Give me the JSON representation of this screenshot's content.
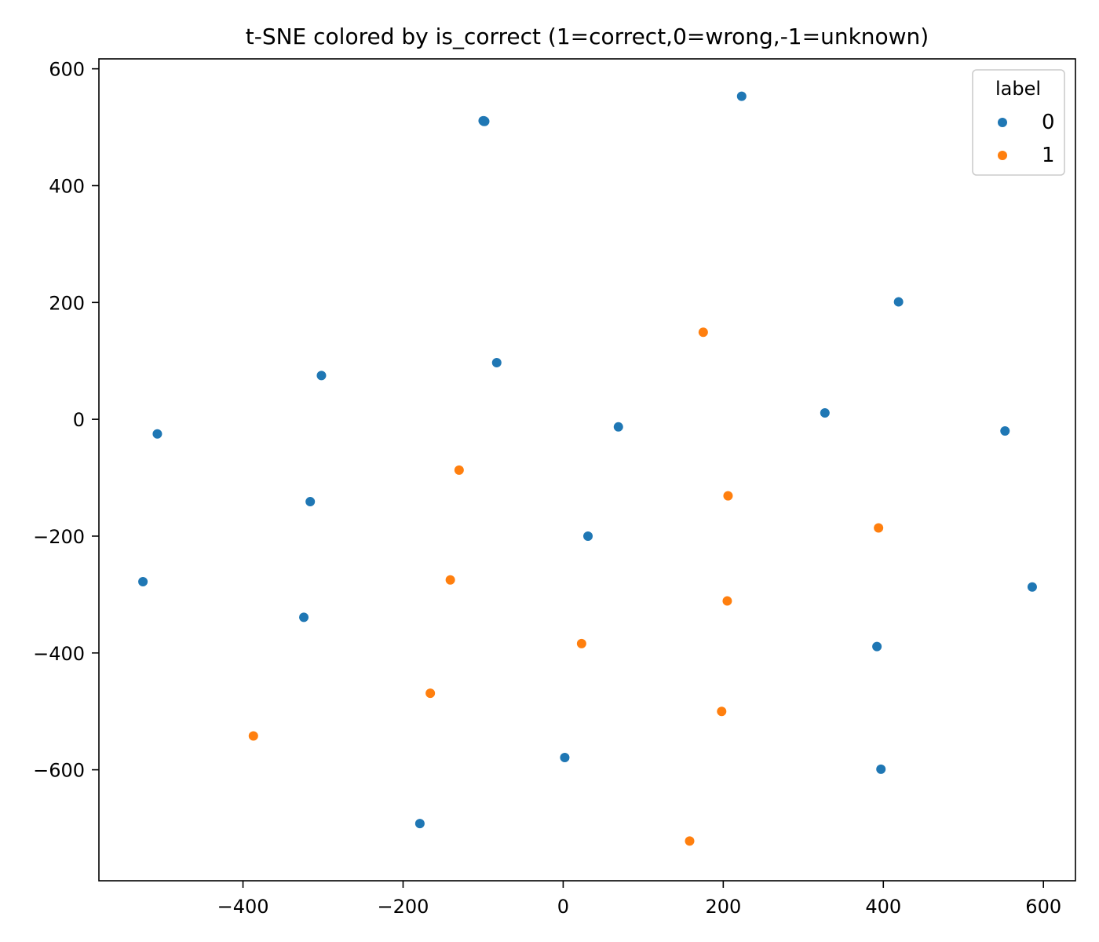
{
  "chart_data": {
    "type": "scatter",
    "title": "t-SNE colored by is_correct (1=correct,0=wrong,-1=unknown)",
    "xlabel": "",
    "ylabel": "",
    "xlim": [
      -580,
      640
    ],
    "ylim": [
      -790,
      617
    ],
    "xticks": [
      -400,
      -200,
      0,
      200,
      400,
      600
    ],
    "yticks": [
      600,
      400,
      200,
      0,
      -200,
      -400,
      -600
    ],
    "xtick_labels": [
      "−400",
      "−200",
      "0",
      "200",
      "400",
      "600"
    ],
    "ytick_labels": [
      "600",
      "400",
      "200",
      "0",
      "−200",
      "−400",
      "−600"
    ],
    "grid": false,
    "legend": {
      "title": "label",
      "placement": "top-right",
      "entries": [
        "0",
        "1"
      ]
    },
    "series": [
      {
        "name": "0",
        "color": "#1f77b4",
        "points": [
          {
            "x": -99,
            "y": 510
          },
          {
            "x": -99,
            "y": 511
          },
          {
            "x": -98,
            "y": 510
          },
          {
            "x": -100,
            "y": 511
          },
          {
            "x": 223,
            "y": 553
          },
          {
            "x": 419,
            "y": 201
          },
          {
            "x": -83,
            "y": 97
          },
          {
            "x": -302,
            "y": 75
          },
          {
            "x": 327,
            "y": 11
          },
          {
            "x": -507,
            "y": -25
          },
          {
            "x": 69,
            "y": -13
          },
          {
            "x": 552,
            "y": -20
          },
          {
            "x": -316,
            "y": -141
          },
          {
            "x": 31,
            "y": -200
          },
          {
            "x": -525,
            "y": -278
          },
          {
            "x": 586,
            "y": -287
          },
          {
            "x": -324,
            "y": -339
          },
          {
            "x": 392,
            "y": -389
          },
          {
            "x": 2,
            "y": -579
          },
          {
            "x": 397,
            "y": -599
          },
          {
            "x": -179,
            "y": -692
          }
        ]
      },
      {
        "name": "1",
        "color": "#ff7f0e",
        "points": [
          {
            "x": 175,
            "y": 149
          },
          {
            "x": -130,
            "y": -87
          },
          {
            "x": 206,
            "y": -131
          },
          {
            "x": 394,
            "y": -186
          },
          {
            "x": -141,
            "y": -275
          },
          {
            "x": 205,
            "y": -311
          },
          {
            "x": 23,
            "y": -384
          },
          {
            "x": -166,
            "y": -469
          },
          {
            "x": 198,
            "y": -500
          },
          {
            "x": -387,
            "y": -542
          },
          {
            "x": 158,
            "y": -722
          }
        ]
      }
    ]
  }
}
